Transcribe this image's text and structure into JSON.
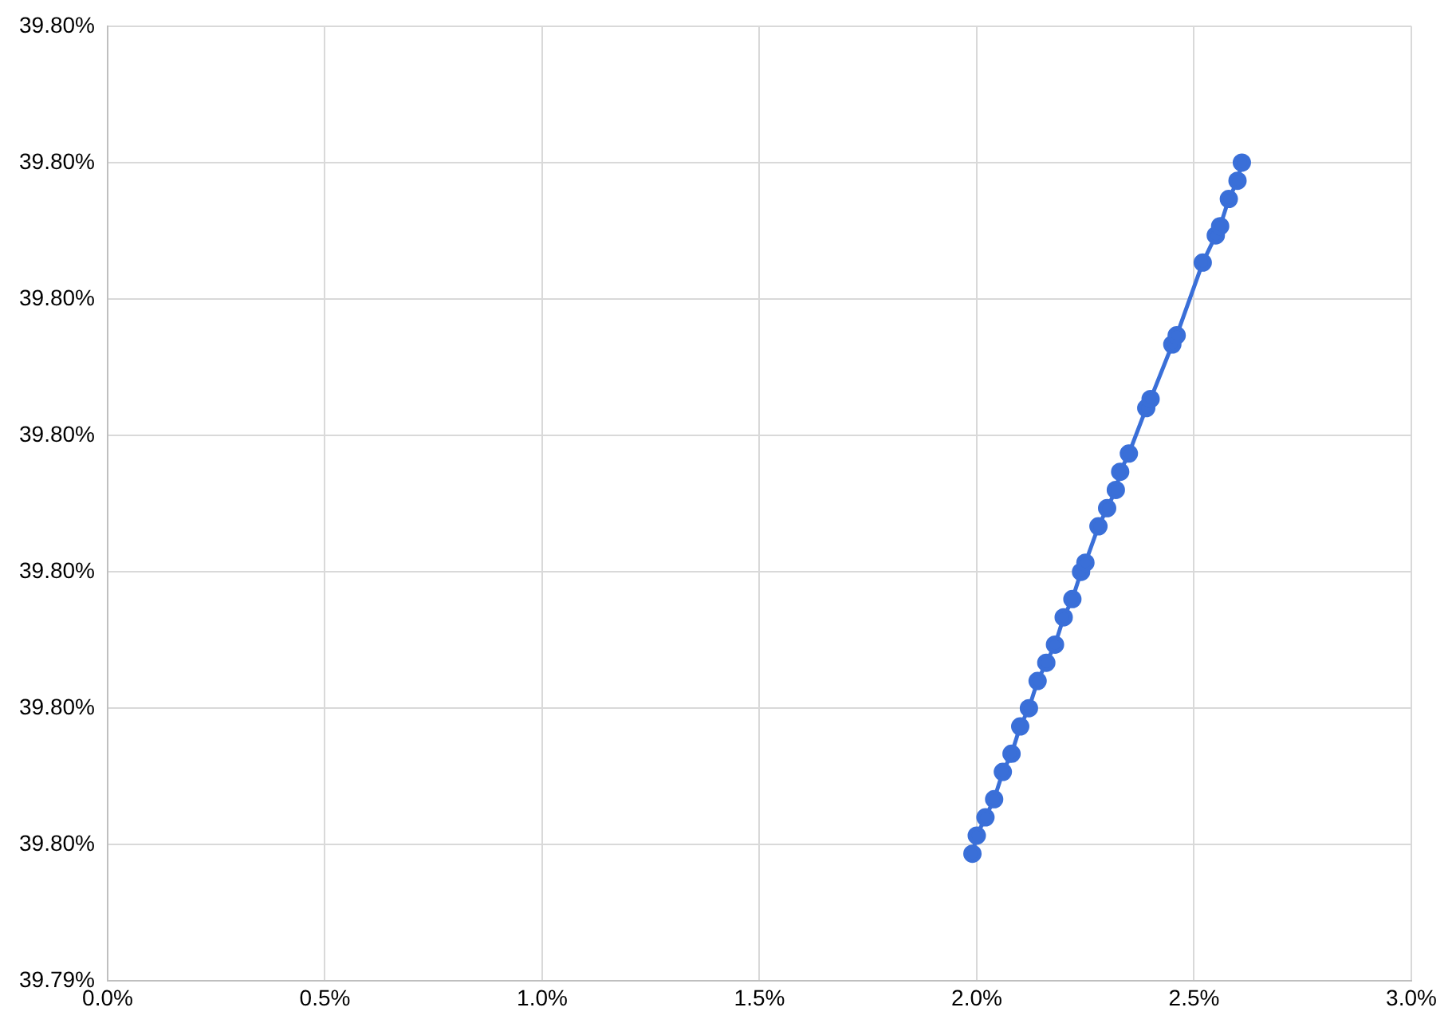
{
  "chart_data": {
    "type": "line",
    "x": [
      1.99,
      2.0,
      2.02,
      2.04,
      2.06,
      2.08,
      2.1,
      2.12,
      2.14,
      2.16,
      2.18,
      2.2,
      2.22,
      2.24,
      2.25,
      2.28,
      2.3,
      2.32,
      2.33,
      2.35,
      2.39,
      2.4,
      2.45,
      2.46,
      2.52,
      2.55,
      2.56,
      2.58,
      2.6,
      2.61
    ],
    "series": [
      {
        "color": "#3a6fd8",
        "values": [
          39.7954,
          39.7956,
          39.7958,
          39.796,
          39.7963,
          39.7965,
          39.7968,
          39.797,
          39.7973,
          39.7975,
          39.7977,
          39.798,
          39.7982,
          39.7985,
          39.7986,
          39.799,
          39.7992,
          39.7994,
          39.7996,
          39.7998,
          39.8003,
          39.8004,
          39.801,
          39.8011,
          39.8019,
          39.8022,
          39.8023,
          39.8026,
          39.8028,
          39.803
        ]
      }
    ],
    "xlim": [
      0,
      3
    ],
    "xticks": [
      {
        "value": 0,
        "label": "0.0%"
      },
      {
        "value": 0.5,
        "label": "0.5%"
      },
      {
        "value": 1,
        "label": "1.0%"
      },
      {
        "value": 1.5,
        "label": "1.5%"
      },
      {
        "value": 2,
        "label": "2.0%"
      },
      {
        "value": 2.5,
        "label": "2.5%"
      },
      {
        "value": 3,
        "label": "3.0%"
      }
    ],
    "ylim": [
      39.794,
      39.8045
    ],
    "yticks": [
      {
        "value": 39.794,
        "label": "39.79%"
      },
      {
        "value": 39.7955,
        "label": "39.80%"
      },
      {
        "value": 39.797,
        "label": "39.80%"
      },
      {
        "value": 39.7985,
        "label": "39.80%"
      },
      {
        "value": 39.8,
        "label": "39.80%"
      },
      {
        "value": 39.8015,
        "label": "39.80%"
      },
      {
        "value": 39.803,
        "label": "39.80%"
      },
      {
        "value": 39.8045,
        "label": "39.80%"
      }
    ],
    "grid": true,
    "legend": false,
    "marker": "circle",
    "line_style": "solid"
  }
}
